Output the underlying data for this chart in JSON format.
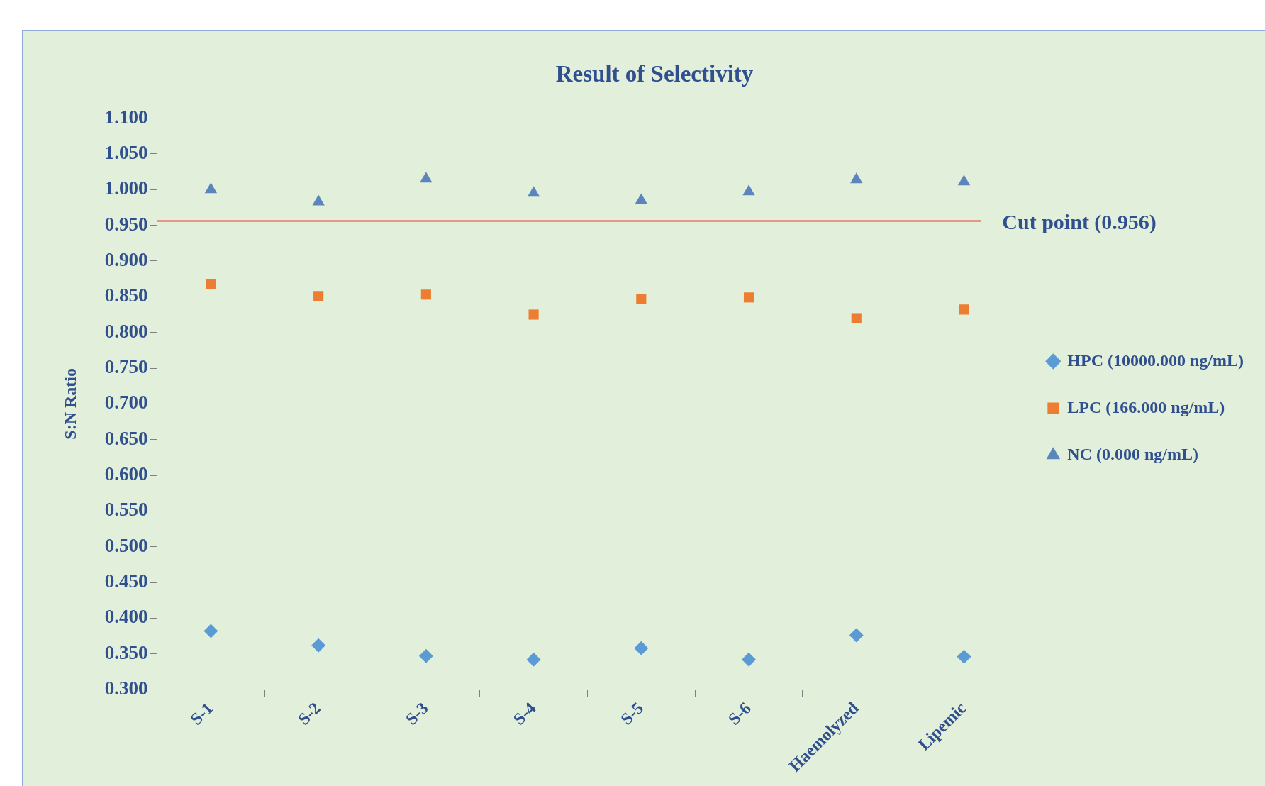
{
  "chart_data": {
    "type": "scatter",
    "title": "Result of Selectivity",
    "ylabel": "S:N Ratio",
    "categories": [
      "S-1",
      "S-2",
      "S-3",
      "S-4",
      "S-5",
      "S-6",
      "Haemolyzed",
      "Lipemic"
    ],
    "series": [
      {
        "name": "HPC (10000.000 ng/mL)",
        "color": "#5b9bd5",
        "marker": "diamond",
        "values": [
          0.382,
          0.362,
          0.347,
          0.342,
          0.358,
          0.342,
          0.376,
          0.346
        ]
      },
      {
        "name": "LPC (166.000 ng/mL)",
        "color": "#ed7d31",
        "marker": "square",
        "values": [
          0.868,
          0.851,
          0.853,
          0.825,
          0.847,
          0.849,
          0.82,
          0.832
        ]
      },
      {
        "name": "NC (0.000 ng/mL)",
        "color": "#5a86bd",
        "marker": "triangle",
        "values": [
          1.0,
          0.983,
          1.015,
          0.995,
          0.985,
          0.997,
          1.014,
          1.011
        ]
      }
    ],
    "ylim": [
      0.3,
      1.1
    ],
    "yticks": [
      {
        "value": 0.3,
        "label": "0.300"
      },
      {
        "value": 0.35,
        "label": "0.350"
      },
      {
        "value": 0.4,
        "label": "0.400"
      },
      {
        "value": 0.45,
        "label": "0.450"
      },
      {
        "value": 0.5,
        "label": "0.500"
      },
      {
        "value": 0.55,
        "label": "0.550"
      },
      {
        "value": 0.6,
        "label": "0.600"
      },
      {
        "value": 0.65,
        "label": "0.650"
      },
      {
        "value": 0.7,
        "label": "0.700"
      },
      {
        "value": 0.75,
        "label": "0.750"
      },
      {
        "value": 0.8,
        "label": "0.800"
      },
      {
        "value": 0.85,
        "label": "0.850"
      },
      {
        "value": 0.9,
        "label": "0.900"
      },
      {
        "value": 0.95,
        "label": "0.950"
      },
      {
        "value": 1.0,
        "label": "1.000"
      },
      {
        "value": 1.05,
        "label": "1.050"
      },
      {
        "value": 1.1,
        "label": "1.100"
      }
    ],
    "ref_lines": [
      {
        "axis": "y",
        "value": 0.956,
        "label": "Cut point (0.956)",
        "color": "#e8403a"
      }
    ],
    "grid": false,
    "legend": "right"
  }
}
